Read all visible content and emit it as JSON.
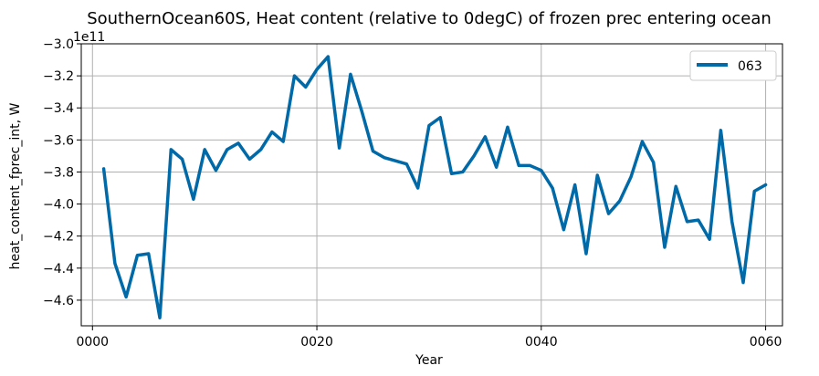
{
  "chart_data": {
    "type": "line",
    "title": "SouthernOcean60S, Heat content (relative to 0degC) of frozen prec entering ocean",
    "xlabel": "Year",
    "ylabel": "heat_content_fprec_int, W",
    "y_offset_label": "1e11",
    "xlim": [
      -1,
      61.5
    ],
    "ylim": [
      -4.76,
      -3.0
    ],
    "y_scale_factor": 100000000000.0,
    "x_ticks": [
      0,
      20,
      40,
      60
    ],
    "x_tick_labels": [
      "0000",
      "0020",
      "0040",
      "0060"
    ],
    "y_ticks": [
      -4.6,
      -4.4,
      -4.2,
      -4.0,
      -3.8,
      -3.6,
      -3.4,
      -3.2,
      -3.0
    ],
    "y_tick_labels": [
      "−4.6",
      "−4.4",
      "−4.2",
      "−4.0",
      "−3.8",
      "−3.6",
      "−3.4",
      "−3.2",
      "−3.0"
    ],
    "grid": true,
    "legend_position": "top-right",
    "series": [
      {
        "name": "063",
        "color": "#0069a8",
        "x": [
          1,
          2,
          3,
          4,
          5,
          6,
          7,
          8,
          9,
          10,
          11,
          12,
          13,
          14,
          15,
          16,
          17,
          18,
          19,
          20,
          21,
          22,
          23,
          24,
          25,
          26,
          27,
          28,
          29,
          30,
          31,
          32,
          33,
          34,
          35,
          36,
          37,
          38,
          39,
          40,
          41,
          42,
          43,
          44,
          45,
          46,
          47,
          48,
          49,
          50,
          51,
          52,
          53,
          54,
          55,
          56,
          57,
          58,
          59,
          60
        ],
        "y": [
          -3.78,
          -4.37,
          -4.58,
          -4.32,
          -4.31,
          -4.71,
          -3.66,
          -3.72,
          -3.97,
          -3.66,
          -3.79,
          -3.66,
          -3.62,
          -3.72,
          -3.66,
          -3.55,
          -3.61,
          -3.2,
          -3.27,
          -3.16,
          -3.08,
          -3.65,
          -3.19,
          -3.42,
          -3.67,
          -3.71,
          -3.73,
          -3.75,
          -3.9,
          -3.51,
          -3.46,
          -3.81,
          -3.8,
          -3.7,
          -3.58,
          -3.77,
          -3.52,
          -3.76,
          -3.76,
          -3.79,
          -3.9,
          -4.16,
          -3.88,
          -4.31,
          -3.82,
          -4.06,
          -3.98,
          -3.83,
          -3.61,
          -3.74,
          -4.27,
          -3.89,
          -4.11,
          -4.1,
          -4.22,
          -3.54,
          -4.11,
          -4.49,
          -3.92,
          -3.88
        ]
      }
    ]
  }
}
